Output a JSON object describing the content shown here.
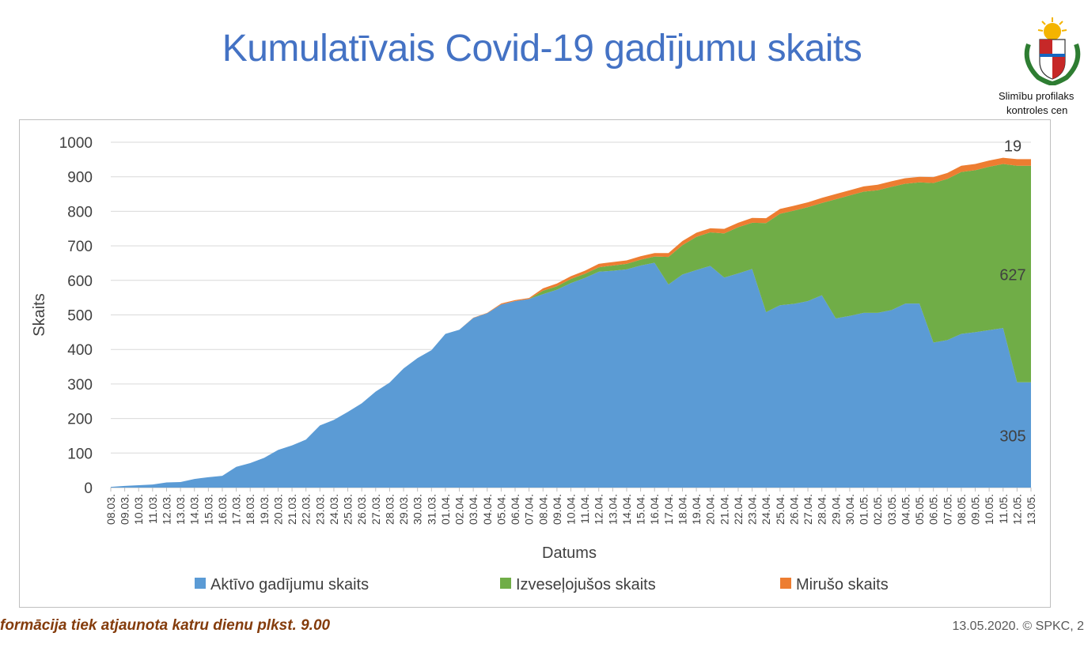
{
  "page": {
    "title": "Kumulatīvais Covid-19 gadījumu skaits",
    "org_line1": "Slimību profilaks",
    "org_line2": "kontroles cen",
    "footer_left": "formācija tiek atjaunota katru dienu plkst. 9.00",
    "footer_right": "13.05.2020. © SPKC, 2"
  },
  "chart_data": {
    "type": "area",
    "stacked": true,
    "xlabel": "Datums",
    "ylabel": "Skaits",
    "ylim": [
      0,
      1000
    ],
    "yticks": [
      0,
      100,
      200,
      300,
      400,
      500,
      600,
      700,
      800,
      900,
      1000
    ],
    "grid": true,
    "legend_position": "bottom",
    "categories": [
      "08.03.",
      "09.03.",
      "10.03.",
      "11.03.",
      "12.03.",
      "13.03.",
      "14.03.",
      "15.03.",
      "16.03.",
      "17.03.",
      "18.03.",
      "19.03.",
      "20.03.",
      "21.03.",
      "22.03.",
      "23.03.",
      "24.03.",
      "25.03.",
      "26.03.",
      "27.03.",
      "28.03.",
      "29.03.",
      "30.03.",
      "31.03.",
      "01.04.",
      "02.04.",
      "03.04.",
      "04.04.",
      "05.04.",
      "06.04.",
      "07.04.",
      "08.04.",
      "09.04.",
      "10.04.",
      "11.04.",
      "12.04.",
      "13.04.",
      "14.04.",
      "15.04.",
      "16.04.",
      "17.04.",
      "18.04.",
      "19.04.",
      "20.04.",
      "21.04.",
      "22.04.",
      "23.04.",
      "24.04.",
      "25.04.",
      "26.04.",
      "27.04.",
      "28.04.",
      "29.04.",
      "30.04.",
      "01.05.",
      "02.05.",
      "03.05.",
      "04.05.",
      "05.05.",
      "06.05.",
      "07.05.",
      "08.05.",
      "09.05.",
      "10.05.",
      "11.05.",
      "12.05.",
      "13.05."
    ],
    "series": [
      {
        "name": "Aktīvo gadījumu skaits",
        "color": "#5b9bd5",
        "values": [
          2,
          5,
          7,
          9,
          15,
          16,
          25,
          30,
          34,
          60,
          71,
          86,
          109,
          122,
          139,
          180,
          196,
          219,
          244,
          278,
          304,
          345,
          375,
          398,
          445,
          457,
          491,
          505,
          530,
          540,
          546,
          560,
          573,
          592,
          607,
          625,
          628,
          632,
          643,
          651,
          588,
          617,
          630,
          642,
          608,
          620,
          633,
          508,
          528,
          532,
          540,
          557,
          490,
          497,
          506,
          506,
          514,
          533,
          533,
          420,
          427,
          445,
          450,
          456,
          462,
          305,
          305
        ]
      },
      {
        "name": "Izveseļojušos skaits",
        "color": "#70ad47",
        "values": [
          0,
          0,
          0,
          0,
          0,
          0,
          0,
          0,
          0,
          0,
          0,
          0,
          0,
          0,
          0,
          0,
          0,
          0,
          0,
          0,
          0,
          0,
          0,
          0,
          0,
          0,
          0,
          0,
          0,
          0,
          0,
          10,
          10,
          12,
          12,
          13,
          15,
          16,
          17,
          18,
          80,
          85,
          96,
          97,
          128,
          134,
          134,
          258,
          265,
          270,
          272,
          267,
          345,
          349,
          351,
          355,
          357,
          347,
          351,
          462,
          467,
          469,
          469,
          473,
          475,
          627,
          627
        ]
      },
      {
        "name": "Mirušo skaits",
        "color": "#ed7d31",
        "values": [
          0,
          0,
          0,
          0,
          0,
          0,
          0,
          0,
          0,
          0,
          0,
          0,
          0,
          0,
          0,
          0,
          0,
          0,
          0,
          0,
          0,
          0,
          0,
          0,
          0,
          0,
          1,
          1,
          3,
          3,
          3,
          7,
          8,
          8,
          9,
          10,
          10,
          10,
          10,
          10,
          11,
          12,
          12,
          12,
          13,
          13,
          14,
          14,
          14,
          14,
          14,
          15,
          15,
          15,
          15,
          16,
          16,
          16,
          16,
          17,
          17,
          18,
          18,
          18,
          18,
          19,
          19
        ]
      }
    ],
    "data_labels": [
      {
        "series": 0,
        "text": "305"
      },
      {
        "series": 1,
        "text": "627"
      },
      {
        "series": 2,
        "text": "19"
      }
    ]
  }
}
